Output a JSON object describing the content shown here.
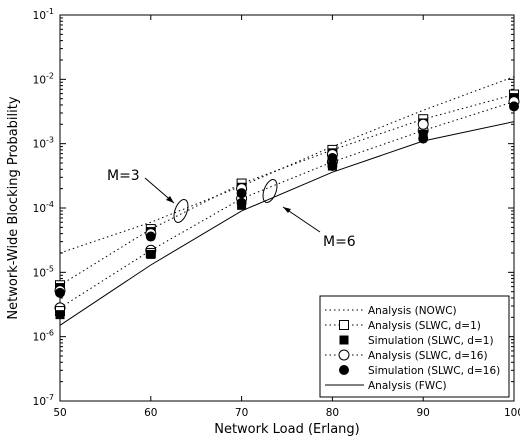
{
  "chart_data": {
    "type": "line",
    "xlabel": "Network Load (Erlang)",
    "ylabel": "Network-Wide Blocking Probability",
    "xlim": [
      50,
      100
    ],
    "ylim_log10": [
      -7,
      -1
    ],
    "y_scale": "log",
    "grid": false,
    "legend_position": "bottom-right",
    "x_ticks": [
      "50",
      "60",
      "70",
      "80",
      "90",
      "100"
    ],
    "y_tick_labels": [
      "10^-7",
      "10^-6",
      "10^-5",
      "10^-4",
      "10^-3",
      "10^-2",
      "10^-1"
    ],
    "x": [
      50,
      60,
      70,
      80,
      90,
      100
    ],
    "series": [
      {
        "name": "Analysis (NOWC)",
        "style": "dotted",
        "marker": "none",
        "values": [
          2e-05,
          6e-05,
          0.00022,
          0.0009,
          0.0033,
          0.011
        ]
      },
      {
        "name": "Analysis (SLWC, d=1)",
        "group": "M=3",
        "style": "dotted",
        "marker": "open-square",
        "values": [
          6.3e-06,
          4.7e-05,
          0.00024,
          0.0008,
          0.0024,
          0.0058
        ]
      },
      {
        "name": "Simulation (SLWC, d=1)",
        "group": "M=3",
        "style": "none",
        "marker": "filled-square",
        "values": [
          5.8e-06,
          4.3e-05,
          0.00021,
          0.00072,
          0.0021,
          0.0052
        ]
      },
      {
        "name": "Analysis (SLWC, d=16)",
        "group": "M=6",
        "style": "dotted",
        "marker": "open-circle",
        "values": [
          2.8e-06,
          2.2e-05,
          0.00014,
          0.00052,
          0.0016,
          0.0045
        ]
      },
      {
        "name": "Simulation (SLWC, d=16)",
        "group": "M=6",
        "style": "none",
        "marker": "filled-circle",
        "values": [
          2.5e-06,
          2e-05,
          0.00012,
          0.00045,
          0.0012,
          0.0038
        ]
      },
      {
        "name": "Analysis (FWC)",
        "style": "solid",
        "marker": "none",
        "values": [
          1.5e-06,
          1.3e-05,
          9e-05,
          0.00036,
          0.0011,
          0.0022
        ]
      }
    ],
    "extra_markers": [
      {
        "series": "Analysis (SLWC, d=1)",
        "x": 50,
        "y": 2.5e-06
      },
      {
        "series": "Analysis (SLWC, d=1)",
        "x": 60,
        "y": 2e-05
      },
      {
        "series": "Simulation (SLWC, d=1)",
        "x": 50,
        "y": 2.2e-06
      },
      {
        "series": "Simulation (SLWC, d=1)",
        "x": 60,
        "y": 1.9e-05
      },
      {
        "series": "Simulation (SLWC, d=1)",
        "x": 70,
        "y": 0.00011
      },
      {
        "series": "Simulation (SLWC, d=1)",
        "x": 80,
        "y": 0.00045
      },
      {
        "series": "Simulation (SLWC, d=1)",
        "x": 90,
        "y": 0.0014
      },
      {
        "series": "Analysis (SLWC, d=16)",
        "x": 50,
        "y": 5.2e-06
      },
      {
        "series": "Analysis (SLWC, d=16)",
        "x": 60,
        "y": 4e-05
      },
      {
        "series": "Analysis (SLWC, d=16)",
        "x": 70,
        "y": 0.0002
      },
      {
        "series": "Analysis (SLWC, d=16)",
        "x": 80,
        "y": 0.00068
      },
      {
        "series": "Analysis (SLWC, d=16)",
        "x": 90,
        "y": 0.002
      },
      {
        "series": "Simulation (SLWC, d=16)",
        "x": 50,
        "y": 4.8e-06
      },
      {
        "series": "Simulation (SLWC, d=16)",
        "x": 60,
        "y": 3.6e-05
      },
      {
        "series": "Simulation (SLWC, d=16)",
        "x": 70,
        "y": 0.00017
      },
      {
        "series": "Simulation (SLWC, d=16)",
        "x": 80,
        "y": 0.0006
      }
    ],
    "annotations": [
      "M=3",
      "M=6"
    ]
  }
}
